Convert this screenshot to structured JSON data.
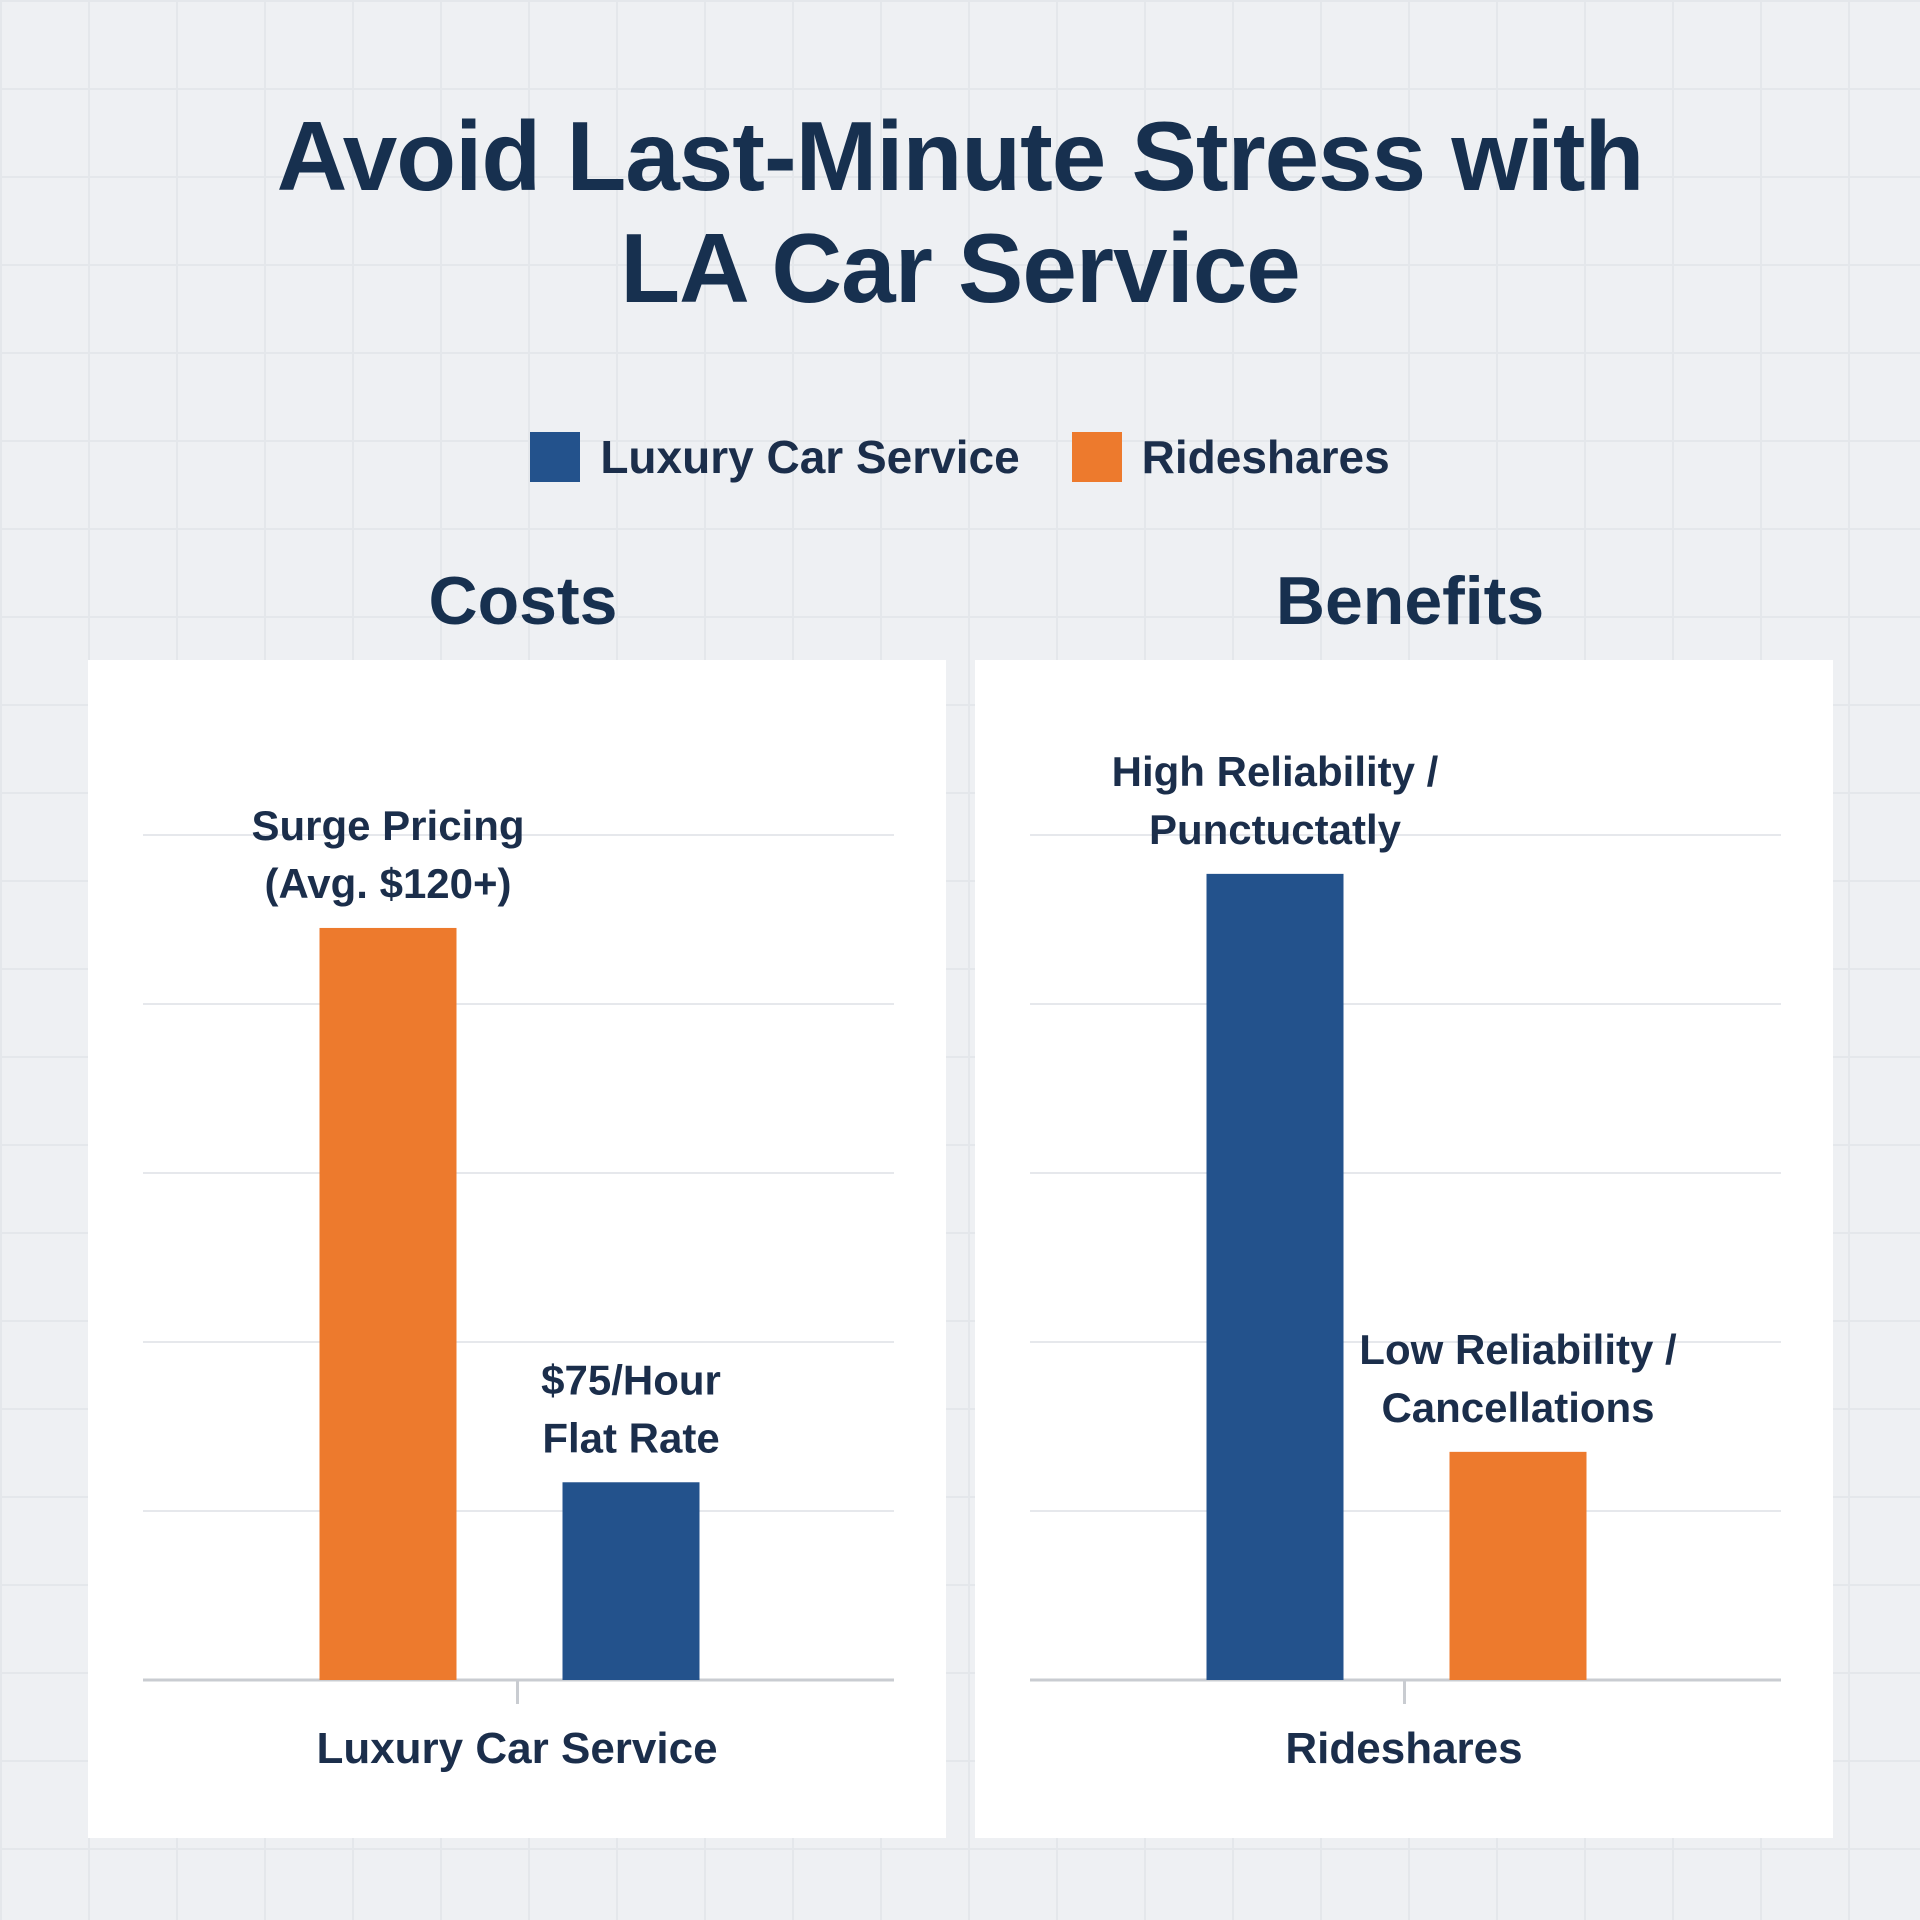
{
  "title_lines": [
    "Avoid Last-Minute Stress with",
    "LA Car Service"
  ],
  "legend": [
    {
      "label": "Luxury Car Service",
      "color": "#23528c"
    },
    {
      "label": "Rideshares",
      "color": "#ed7a2d"
    }
  ],
  "colors": {
    "luxury": "#23528c",
    "rideshare": "#ed7a2d",
    "grid": "#e6e8ec",
    "axis": "#c9ccd1",
    "text": "#1b2e4b"
  },
  "chart_data": [
    {
      "type": "bar",
      "title": "Costs",
      "xlabel": "Luxury Car Service",
      "ylim": [
        0,
        5
      ],
      "grid": true,
      "bars": [
        {
          "series": "Rideshares",
          "value": 4.45,
          "label_lines": [
            "Surge Pricing",
            "(Avg. $120+)"
          ]
        },
        {
          "series": "Luxury Car Service",
          "value": 1.17,
          "label_lines": [
            "$75/Hour",
            "Flat Rate"
          ]
        }
      ]
    },
    {
      "type": "bar",
      "title": "Benefits",
      "xlabel": "Rideshares",
      "ylim": [
        0,
        5
      ],
      "grid": true,
      "bars": [
        {
          "series": "Luxury Car Service",
          "value": 4.77,
          "label_lines": [
            "High Reliability /",
            "Punctuctatly"
          ]
        },
        {
          "series": "Rideshares",
          "value": 1.35,
          "label_lines": [
            "Low Reliability /",
            "Cancellations"
          ]
        }
      ]
    }
  ]
}
